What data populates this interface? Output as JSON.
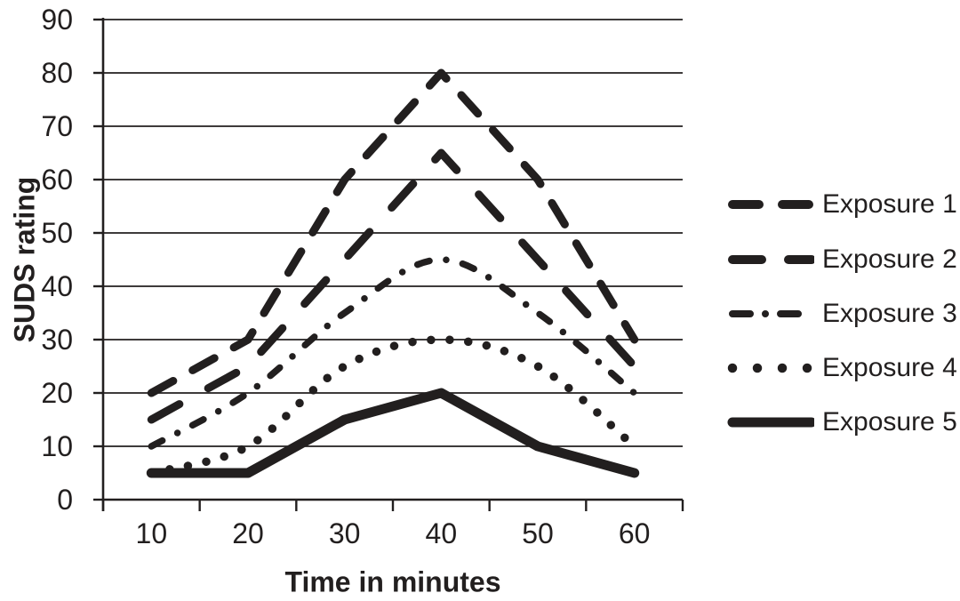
{
  "chart_data": {
    "type": "line",
    "x": [
      10,
      20,
      30,
      40,
      50,
      60
    ],
    "xlabel": "Time in minutes",
    "ylabel": "SUDS rating",
    "ylim": [
      0,
      90
    ],
    "yticks": [
      0,
      10,
      20,
      30,
      40,
      50,
      60,
      70,
      80,
      90
    ],
    "grid": "horizontal",
    "legend_position": "right",
    "line_color": "#221f1f",
    "series": [
      {
        "name": "Exposure 1",
        "style": "dashed",
        "values": [
          20,
          30,
          60,
          80,
          60,
          30
        ]
      },
      {
        "name": "Exposure 2",
        "style": "long-dashed",
        "values": [
          15,
          25,
          45,
          65,
          45,
          25
        ]
      },
      {
        "name": "Exposure 3",
        "style": "dash-dot",
        "values": [
          10,
          20,
          35,
          45,
          35,
          20
        ]
      },
      {
        "name": "Exposure 4",
        "style": "dotted",
        "values": [
          5,
          10,
          25,
          30,
          25,
          10
        ]
      },
      {
        "name": "Exposure 5",
        "style": "solid",
        "values": [
          5,
          5,
          15,
          20,
          10,
          5
        ]
      }
    ]
  }
}
